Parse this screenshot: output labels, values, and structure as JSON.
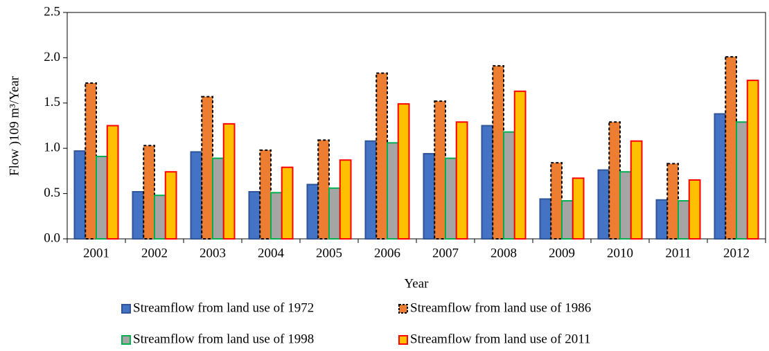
{
  "chart_data": {
    "type": "bar",
    "x_label": "Year",
    "y_label": "Flow )109 m³/Year",
    "categories": [
      "2001",
      "2002",
      "2003",
      "2004",
      "2005",
      "2006",
      "2007",
      "2008",
      "2009",
      "2010",
      "2011",
      "2012"
    ],
    "series": [
      {
        "name": "Streamflow from land use of 1972",
        "color": "#4472c4",
        "edgecolor": "#2f5597",
        "linestyle": "solid",
        "values": [
          0.97,
          0.52,
          0.96,
          0.52,
          0.6,
          1.08,
          0.94,
          1.25,
          0.44,
          0.76,
          0.43,
          1.38
        ]
      },
      {
        "name": "Streamflow from land use of 1986",
        "color": "#ed7d31",
        "edgecolor": "#000000",
        "linestyle": "dashed",
        "values": [
          1.72,
          1.03,
          1.57,
          0.98,
          1.09,
          1.83,
          1.52,
          1.91,
          0.84,
          1.29,
          0.83,
          2.01
        ]
      },
      {
        "name": "Streamflow from land use of 1998",
        "color": "#a5a5a5",
        "edgecolor": "#00b050",
        "linestyle": "solid",
        "values": [
          0.91,
          0.48,
          0.89,
          0.51,
          0.56,
          1.06,
          0.89,
          1.18,
          0.42,
          0.74,
          0.42,
          1.29
        ]
      },
      {
        "name": "Streamflow from land use of 2011",
        "color": "#ffc000",
        "edgecolor": "#ff0000",
        "linestyle": "solid",
        "values": [
          1.25,
          0.74,
          1.27,
          0.79,
          0.87,
          1.49,
          1.29,
          1.63,
          0.67,
          1.08,
          0.65,
          1.75
        ]
      }
    ],
    "ylim": [
      0,
      2.5
    ],
    "yticks": [
      {
        "value": 0,
        "label": "0.0"
      },
      {
        "value": 0.5,
        "label": "0.5"
      },
      {
        "value": 1,
        "label": "1.0"
      },
      {
        "value": 1.5,
        "label": "1.5"
      },
      {
        "value": 2,
        "label": "2.0"
      },
      {
        "value": 2.5,
        "label": "2.5"
      }
    ],
    "grid": false,
    "legend": "bottom"
  }
}
